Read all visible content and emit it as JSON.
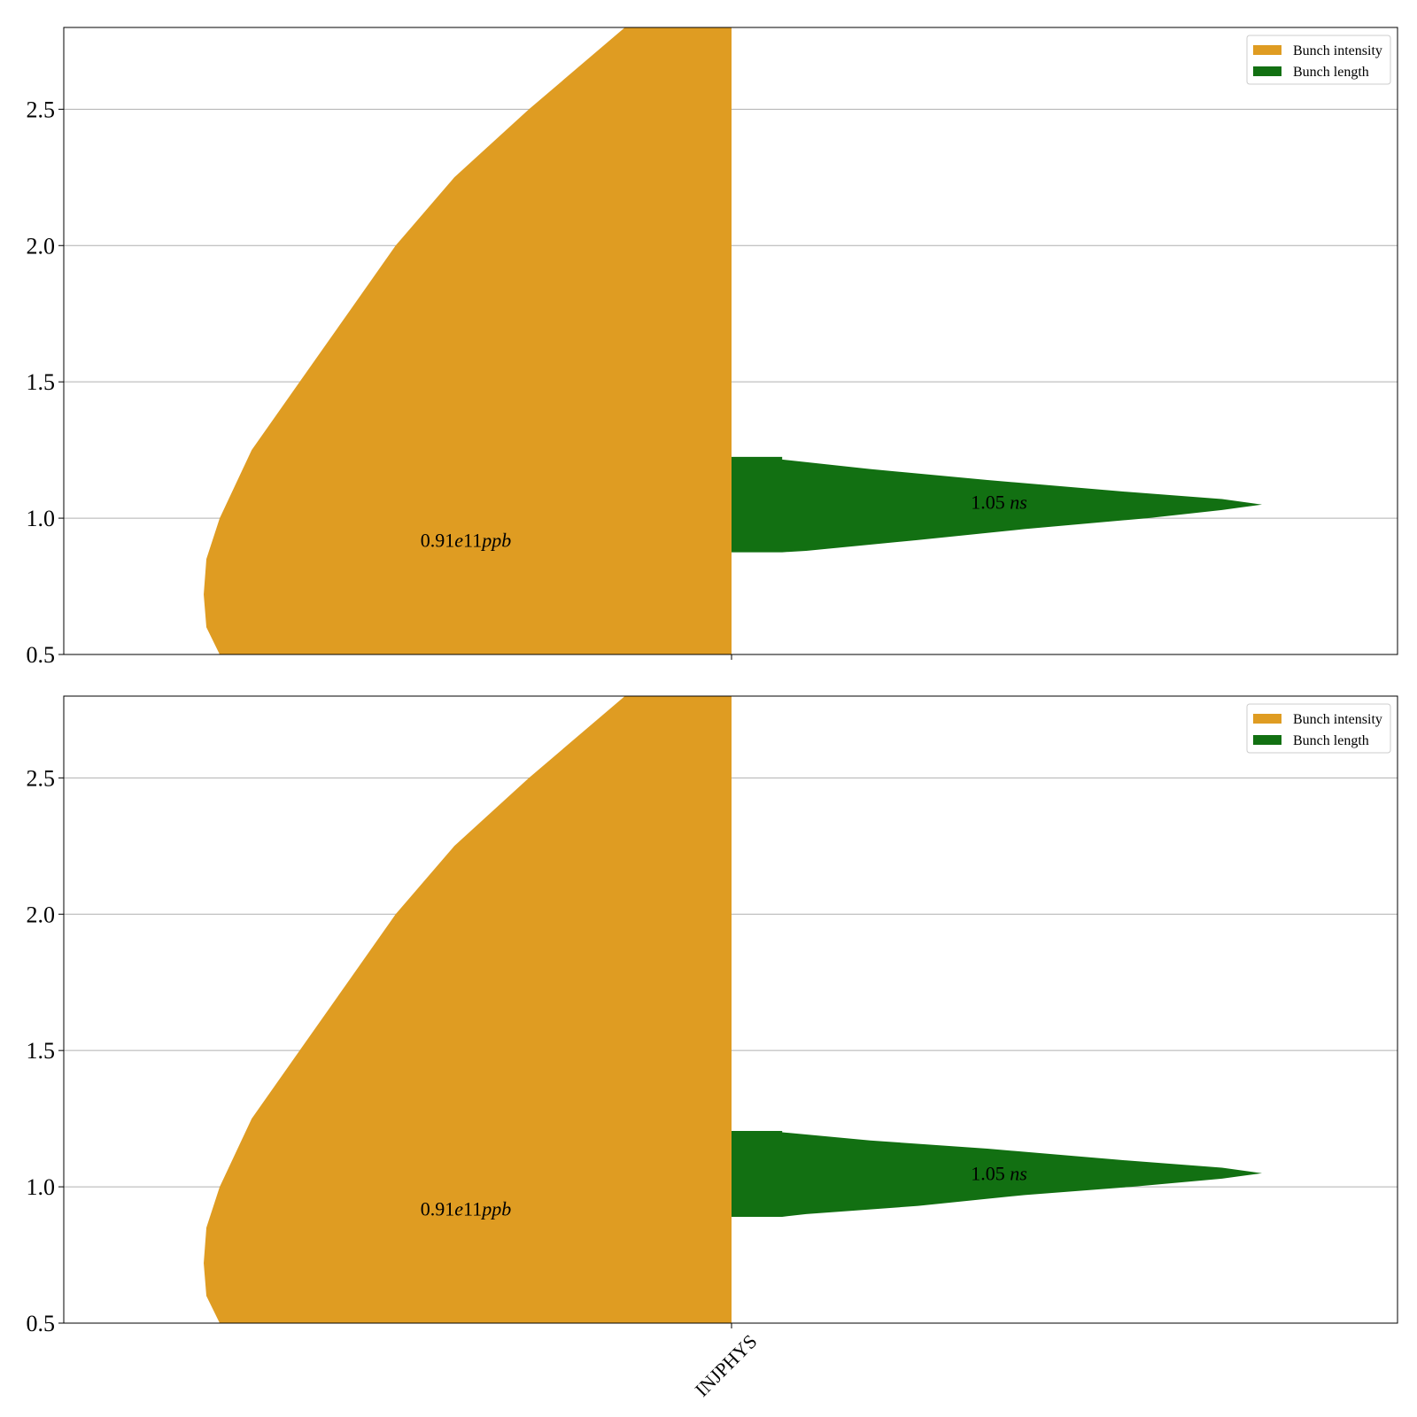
{
  "colors": {
    "intensity": "#df9c22",
    "length": "#127012",
    "grid": "#b0b0b0"
  },
  "chart_data": [
    {
      "type": "violin",
      "title": "",
      "xlabel": "",
      "ylabel": "",
      "ylim": [
        0.5,
        2.8
      ],
      "yticks": [
        "0.5",
        "1.0",
        "1.5",
        "2.0",
        "2.5"
      ],
      "grid": true,
      "legend_position": "top-right",
      "x_tick_label": "",
      "series": [
        {
          "name": "Bunch intensity",
          "side": "left",
          "color_key": "intensity",
          "profile": [
            [
              0.5,
              0.96
            ],
            [
              0.6,
              0.985
            ],
            [
              0.72,
              0.99
            ],
            [
              0.85,
              0.985
            ],
            [
              1.0,
              0.96
            ],
            [
              1.25,
              0.9
            ],
            [
              1.5,
              0.81
            ],
            [
              1.75,
              0.72
            ],
            [
              2.0,
              0.63
            ],
            [
              2.25,
              0.52
            ],
            [
              2.5,
              0.38
            ],
            [
              2.8,
              0.2
            ]
          ],
          "annotation": {
            "value": "0.91",
            "exp": "e11",
            "unit": "ppb",
            "y": 0.92
          }
        },
        {
          "name": "Bunch length",
          "side": "right",
          "color_key": "length",
          "profile": [
            [
              0.875,
              0.095
            ],
            [
              0.88,
              0.14
            ],
            [
              0.92,
              0.35
            ],
            [
              0.96,
              0.55
            ],
            [
              1.0,
              0.78
            ],
            [
              1.03,
              0.92
            ],
            [
              1.05,
              0.995
            ],
            [
              1.07,
              0.92
            ],
            [
              1.1,
              0.72
            ],
            [
              1.14,
              0.48
            ],
            [
              1.18,
              0.26
            ],
            [
              1.215,
              0.095
            ],
            [
              1.225,
              0.095
            ]
          ],
          "flat": [
            0.875,
            1.225
          ],
          "annotation": {
            "value": "1.05",
            "unit": "ns",
            "y": 1.06
          }
        }
      ]
    },
    {
      "type": "violin",
      "title": "",
      "xlabel": "",
      "ylabel": "",
      "ylim": [
        0.5,
        2.8
      ],
      "yticks": [
        "0.5",
        "1.0",
        "1.5",
        "2.0",
        "2.5"
      ],
      "grid": true,
      "legend_position": "top-right",
      "x_tick_label": "INJPHYS",
      "series": [
        {
          "name": "Bunch intensity",
          "side": "left",
          "color_key": "intensity",
          "profile": [
            [
              0.5,
              0.96
            ],
            [
              0.6,
              0.985
            ],
            [
              0.72,
              0.99
            ],
            [
              0.85,
              0.985
            ],
            [
              1.0,
              0.96
            ],
            [
              1.25,
              0.9
            ],
            [
              1.5,
              0.81
            ],
            [
              1.75,
              0.72
            ],
            [
              2.0,
              0.63
            ],
            [
              2.25,
              0.52
            ],
            [
              2.5,
              0.38
            ],
            [
              2.8,
              0.2
            ]
          ],
          "annotation": {
            "value": "0.91",
            "exp": "e11",
            "unit": "ppb",
            "y": 0.92
          }
        },
        {
          "name": "Bunch length",
          "side": "right",
          "color_key": "length",
          "profile": [
            [
              0.89,
              0.095
            ],
            [
              0.9,
              0.14
            ],
            [
              0.93,
              0.35
            ],
            [
              0.97,
              0.55
            ],
            [
              1.0,
              0.75
            ],
            [
              1.03,
              0.92
            ],
            [
              1.05,
              0.995
            ],
            [
              1.07,
              0.92
            ],
            [
              1.1,
              0.72
            ],
            [
              1.14,
              0.48
            ],
            [
              1.17,
              0.26
            ],
            [
              1.2,
              0.095
            ],
            [
              1.205,
              0.095
            ]
          ],
          "flat": [
            0.89,
            1.205
          ],
          "annotation": {
            "value": "1.05",
            "unit": "ns",
            "y": 1.05
          }
        }
      ]
    }
  ]
}
